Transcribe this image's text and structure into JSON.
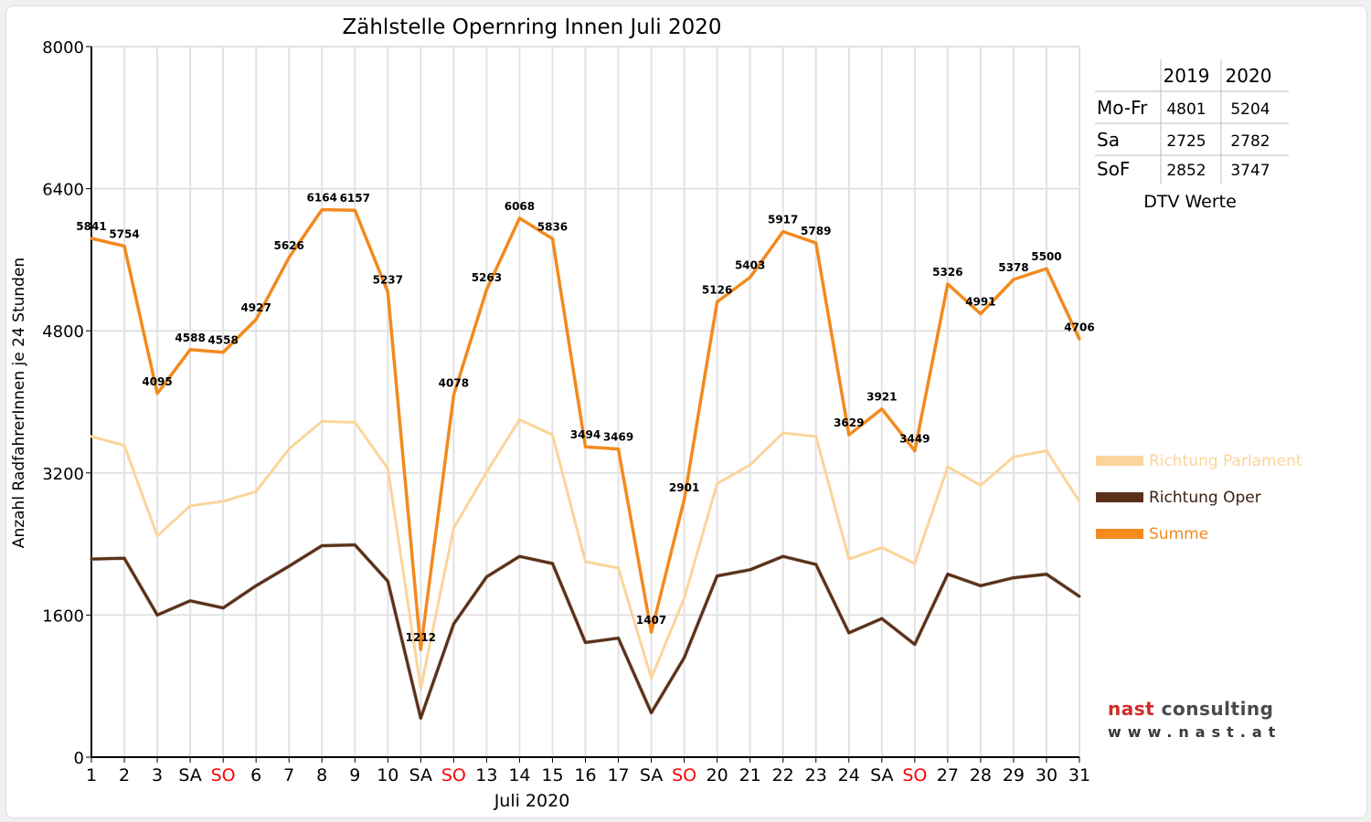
{
  "chart_data": {
    "type": "line",
    "title": "Zählstelle Opernring Innen Juli 2020",
    "xlabel": "Juli 2020",
    "ylabel": "Anzahl RadfahrerInnen je 24 Stunden",
    "ylim": [
      0,
      8000
    ],
    "yticks": [
      "0",
      "1600",
      "3200",
      "4800",
      "6400",
      "8000"
    ],
    "grid": true,
    "legend_position": "right",
    "categories": [
      "1",
      "2",
      "3",
      "SA",
      "SO",
      "6",
      "7",
      "8",
      "9",
      "10",
      "SA",
      "SO",
      "13",
      "14",
      "15",
      "16",
      "17",
      "SA",
      "SO",
      "20",
      "21",
      "22",
      "23",
      "24",
      "SA",
      "SO",
      "27",
      "28",
      "29",
      "30",
      "31"
    ],
    "weekend_color": "#ff0000",
    "series": [
      {
        "name": "Richtung Parlament",
        "color": "#fbd49c",
        "values": [
          3610,
          3510,
          2490,
          2830,
          2880,
          2990,
          3470,
          3780,
          3770,
          3250,
          770,
          2580,
          3210,
          3800,
          3630,
          2200,
          2130,
          890,
          1790,
          3080,
          3290,
          3650,
          3610,
          2230,
          2360,
          2180,
          3270,
          3060,
          3380,
          3450,
          2880
        ]
      },
      {
        "name": "Richtung Oper",
        "color": "#5a3018",
        "values": [
          2230,
          2240,
          1600,
          1760,
          1680,
          1930,
          2150,
          2380,
          2390,
          1980,
          440,
          1500,
          2030,
          2260,
          2180,
          1290,
          1340,
          500,
          1120,
          2040,
          2110,
          2260,
          2170,
          1400,
          1560,
          1270,
          2060,
          1930,
          2020,
          2060,
          1810
        ]
      },
      {
        "name": "Summe",
        "color": "#f28a1e",
        "values": [
          5841,
          5754,
          4095,
          4588,
          4558,
          4927,
          5626,
          6164,
          6157,
          5237,
          1212,
          4078,
          5263,
          6068,
          5836,
          3494,
          3469,
          1407,
          2901,
          5126,
          5403,
          5917,
          5789,
          3629,
          3921,
          3449,
          5326,
          4991,
          5378,
          5500,
          4706
        ],
        "labels": [
          "5841",
          "5754",
          "4095",
          "4588",
          "4558",
          "4927",
          "5626",
          "6164",
          "6157",
          "5237",
          "1212",
          "4078",
          "5263",
          "6068",
          "5836",
          "3494",
          "3469",
          "1407",
          "2901",
          "5126",
          "5403",
          "5917",
          "5789",
          "3629",
          "3921",
          "3449",
          "5326",
          "4991",
          "5378",
          "5500",
          "4706"
        ]
      }
    ]
  },
  "dtv_table": {
    "columns": [
      "2019",
      "2020"
    ],
    "rows": [
      {
        "label": "Mo-Fr",
        "values": [
          "4801",
          "5204"
        ]
      },
      {
        "label": "Sa",
        "values": [
          "2725",
          "2782"
        ]
      },
      {
        "label": "SoF",
        "values": [
          "2852",
          "3747"
        ]
      }
    ],
    "caption": "DTV Werte"
  },
  "logo": {
    "brand": "nast",
    "brand_suffix": "consulting",
    "url": "www.nast.at"
  }
}
